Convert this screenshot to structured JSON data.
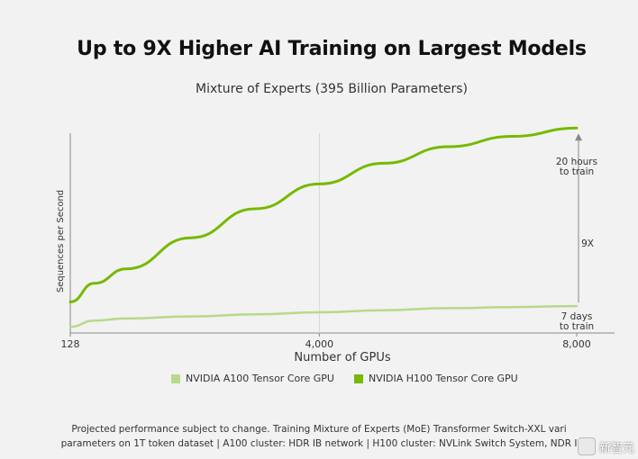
{
  "header": {
    "title": "Up to 9X Higher AI Training on Largest Models",
    "subtitle": "Mixture of Experts (395 Billion Parameters)"
  },
  "chart_data": {
    "type": "line",
    "xlabel": "Number of GPUs",
    "ylabel": "Sequences per Second",
    "x_ticks": [
      "128",
      "4,000",
      "8,000"
    ],
    "x": [
      128,
      500,
      1000,
      2000,
      3000,
      4000,
      5000,
      6000,
      7000,
      8000
    ],
    "ylim": [
      0,
      100
    ],
    "grid": "vertical line at 4,000",
    "series": [
      {
        "name": "NVIDIA A100 Tensor Core GPU",
        "color": "#b7d98b",
        "values": [
          3,
          6,
          7,
          8,
          9,
          10,
          11,
          12,
          12.5,
          13
        ]
      },
      {
        "name": "NVIDIA H100 Tensor Core GPU",
        "color": "#76b900",
        "values": [
          15,
          24,
          31,
          46,
          60,
          72,
          82,
          90,
          95,
          99
        ]
      }
    ],
    "annotations": {
      "top_line1": "20 hours",
      "top_line2": "to train",
      "bottom_line1": "7 days",
      "bottom_line2": "to train",
      "ratio": "9X"
    }
  },
  "legend": [
    {
      "label": "NVIDIA A100 Tensor Core GPU",
      "color": "#b7d98b"
    },
    {
      "label": "NVIDIA H100 Tensor Core GPU",
      "color": "#76b900"
    }
  ],
  "footnote": {
    "line1": "Projected performance subject to change. Training Mixture of Experts (MoE) Transformer Switch-XXL vari",
    "line2": "parameters on 1T token dataset | A100 cluster: HDR IB network | H100 cluster: NVLink Switch System, NDR I"
  },
  "watermark": {
    "text": "新智元"
  }
}
